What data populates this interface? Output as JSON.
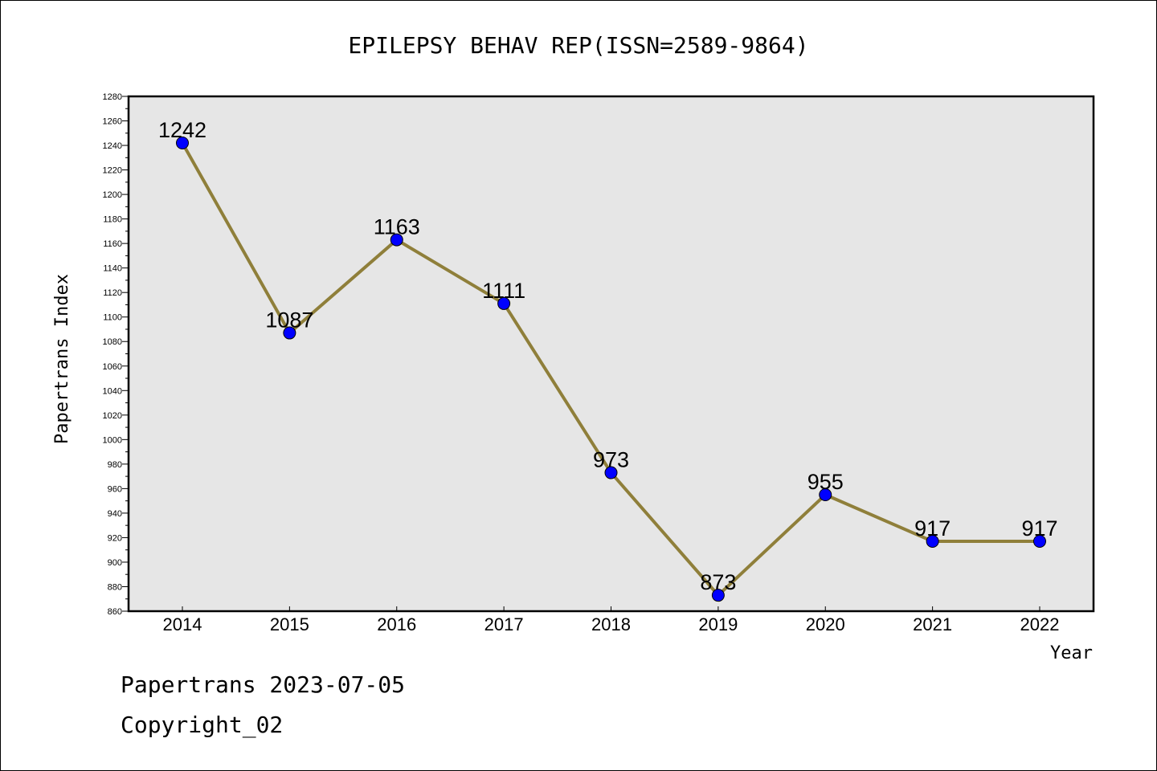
{
  "footer": {
    "line1": "Papertrans 2023-07-05",
    "line2": "Copyright_02"
  },
  "chart_data": {
    "type": "line",
    "title": "EPILEPSY BEHAV REP(ISSN=2589-9864)",
    "xlabel": "Year",
    "ylabel": "Papertrans Index",
    "categories": [
      "2014",
      "2015",
      "2016",
      "2017",
      "2018",
      "2019",
      "2020",
      "2021",
      "2022"
    ],
    "series": [
      {
        "values": [
          1242,
          1087,
          1163,
          1111,
          973,
          873,
          955,
          917,
          917
        ]
      }
    ],
    "data_labels": [
      "1242",
      "1087",
      "1163",
      "1111",
      "973",
      "873",
      "955",
      "917",
      "917"
    ],
    "ylim": [
      860,
      1280
    ],
    "y_ticks": [
      860,
      880,
      900,
      920,
      940,
      960,
      980,
      1000,
      1020,
      1040,
      1060,
      1080,
      1100,
      1120,
      1140,
      1160,
      1180,
      1200,
      1220,
      1240,
      1260,
      1280
    ],
    "grid": false,
    "legend": "none",
    "colors": {
      "line": "#8f7f3a",
      "marker": "#0000ff",
      "plot_background": "#e6e6e6"
    }
  }
}
